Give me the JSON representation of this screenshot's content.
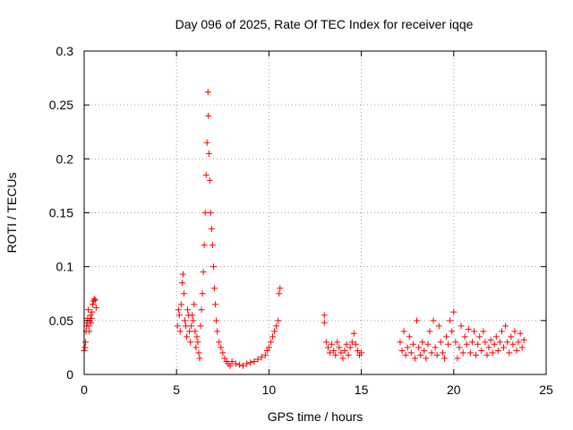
{
  "chart_data": {
    "type": "scatter",
    "title": "Day 096 of 2025, Rate Of TEC Index for receiver iqqe",
    "xlabel": "GPS time / hours",
    "ylabel": "ROTI / TECUs",
    "xlim": [
      0,
      25
    ],
    "ylim": [
      0,
      0.3
    ],
    "xticks": [
      0,
      5,
      10,
      15,
      20,
      25
    ],
    "yticks": [
      0,
      0.05,
      0.1,
      0.15,
      0.2,
      0.25,
      0.3
    ],
    "xtick_labels": [
      "0",
      "5",
      "10",
      "15",
      "20",
      "25"
    ],
    "ytick_labels": [
      "0",
      "0.05",
      "0.1",
      "0.15",
      "0.2",
      "0.25",
      "0.3"
    ],
    "grid": true,
    "marker": "+",
    "color": "#ff0000",
    "series": [
      {
        "points": [
          [
            0.0,
            0.022
          ],
          [
            0.05,
            0.025
          ],
          [
            0.08,
            0.03
          ],
          [
            0.1,
            0.04
          ],
          [
            0.13,
            0.045
          ],
          [
            0.16,
            0.048
          ],
          [
            0.19,
            0.052
          ],
          [
            0.22,
            0.06
          ],
          [
            0.25,
            0.045
          ],
          [
            0.28,
            0.04
          ],
          [
            0.31,
            0.05
          ],
          [
            0.34,
            0.055
          ],
          [
            0.37,
            0.048
          ],
          [
            0.4,
            0.052
          ],
          [
            0.43,
            0.058
          ],
          [
            0.46,
            0.065
          ],
          [
            0.5,
            0.068
          ],
          [
            0.55,
            0.07
          ],
          [
            0.6,
            0.069
          ],
          [
            0.65,
            0.062
          ],
          [
            5.05,
            0.045
          ],
          [
            5.1,
            0.06
          ],
          [
            5.15,
            0.055
          ],
          [
            5.2,
            0.04
          ],
          [
            5.25,
            0.065
          ],
          [
            5.3,
            0.085
          ],
          [
            5.35,
            0.093
          ],
          [
            5.4,
            0.075
          ],
          [
            5.45,
            0.05
          ],
          [
            5.5,
            0.045
          ],
          [
            5.55,
            0.035
          ],
          [
            5.6,
            0.06
          ],
          [
            5.65,
            0.055
          ],
          [
            5.7,
            0.04
          ],
          [
            5.75,
            0.03
          ],
          [
            5.8,
            0.045
          ],
          [
            5.85,
            0.055
          ],
          [
            5.9,
            0.05
          ],
          [
            5.95,
            0.065
          ],
          [
            6.0,
            0.04
          ],
          [
            6.05,
            0.025
          ],
          [
            6.1,
            0.035
          ],
          [
            6.15,
            0.03
          ],
          [
            6.2,
            0.02
          ],
          [
            6.25,
            0.015
          ],
          [
            6.3,
            0.045
          ],
          [
            6.35,
            0.06
          ],
          [
            6.4,
            0.075
          ],
          [
            6.45,
            0.095
          ],
          [
            6.5,
            0.12
          ],
          [
            6.55,
            0.15
          ],
          [
            6.6,
            0.185
          ],
          [
            6.65,
            0.215
          ],
          [
            6.7,
            0.262
          ],
          [
            6.72,
            0.24
          ],
          [
            6.75,
            0.205
          ],
          [
            6.8,
            0.18
          ],
          [
            6.85,
            0.15
          ],
          [
            6.9,
            0.135
          ],
          [
            6.95,
            0.12
          ],
          [
            7.0,
            0.1
          ],
          [
            7.05,
            0.08
          ],
          [
            7.1,
            0.065
          ],
          [
            7.15,
            0.05
          ],
          [
            7.2,
            0.04
          ],
          [
            7.3,
            0.03
          ],
          [
            7.4,
            0.025
          ],
          [
            7.5,
            0.02
          ],
          [
            7.6,
            0.015
          ],
          [
            7.7,
            0.012
          ],
          [
            7.8,
            0.01
          ],
          [
            7.9,
            0.008
          ],
          [
            8.0,
            0.012
          ],
          [
            8.2,
            0.01
          ],
          [
            8.4,
            0.009
          ],
          [
            8.6,
            0.008
          ],
          [
            8.8,
            0.01
          ],
          [
            9.0,
            0.011
          ],
          [
            9.2,
            0.012
          ],
          [
            9.4,
            0.014
          ],
          [
            9.6,
            0.016
          ],
          [
            9.8,
            0.018
          ],
          [
            9.9,
            0.022
          ],
          [
            10.0,
            0.025
          ],
          [
            10.1,
            0.03
          ],
          [
            10.2,
            0.035
          ],
          [
            10.3,
            0.04
          ],
          [
            10.4,
            0.045
          ],
          [
            10.5,
            0.05
          ],
          [
            10.55,
            0.075
          ],
          [
            10.6,
            0.08
          ],
          [
            13.0,
            0.055
          ],
          [
            13.0,
            0.048
          ],
          [
            13.1,
            0.03
          ],
          [
            13.2,
            0.025
          ],
          [
            13.3,
            0.02
          ],
          [
            13.4,
            0.028
          ],
          [
            13.5,
            0.022
          ],
          [
            13.6,
            0.018
          ],
          [
            13.7,
            0.03
          ],
          [
            13.8,
            0.025
          ],
          [
            13.9,
            0.02
          ],
          [
            14.0,
            0.015
          ],
          [
            14.1,
            0.022
          ],
          [
            14.2,
            0.028
          ],
          [
            14.3,
            0.018
          ],
          [
            14.4,
            0.025
          ],
          [
            14.5,
            0.03
          ],
          [
            14.6,
            0.038
          ],
          [
            14.7,
            0.028
          ],
          [
            14.8,
            0.022
          ],
          [
            14.9,
            0.018
          ],
          [
            15.0,
            0.02
          ],
          [
            17.1,
            0.03
          ],
          [
            17.2,
            0.022
          ],
          [
            17.3,
            0.04
          ],
          [
            17.4,
            0.018
          ],
          [
            17.5,
            0.025
          ],
          [
            17.6,
            0.035
          ],
          [
            17.7,
            0.02
          ],
          [
            17.8,
            0.028
          ],
          [
            17.9,
            0.015
          ],
          [
            18.0,
            0.05
          ],
          [
            18.1,
            0.025
          ],
          [
            18.2,
            0.018
          ],
          [
            18.3,
            0.03
          ],
          [
            18.4,
            0.022
          ],
          [
            18.5,
            0.015
          ],
          [
            18.6,
            0.028
          ],
          [
            18.7,
            0.04
          ],
          [
            18.8,
            0.02
          ],
          [
            18.9,
            0.05
          ],
          [
            19.0,
            0.025
          ],
          [
            19.1,
            0.018
          ],
          [
            19.2,
            0.045
          ],
          [
            19.3,
            0.03
          ],
          [
            19.4,
            0.02
          ],
          [
            19.5,
            0.015
          ],
          [
            19.6,
            0.035
          ],
          [
            19.7,
            0.028
          ],
          [
            19.8,
            0.05
          ],
          [
            19.9,
            0.04
          ],
          [
            20.0,
            0.058
          ],
          [
            20.1,
            0.03
          ],
          [
            20.2,
            0.015
          ],
          [
            20.3,
            0.025
          ],
          [
            20.4,
            0.045
          ],
          [
            20.5,
            0.02
          ],
          [
            20.6,
            0.035
          ],
          [
            20.7,
            0.028
          ],
          [
            20.8,
            0.042
          ],
          [
            20.9,
            0.02
          ],
          [
            21.0,
            0.03
          ],
          [
            21.1,
            0.04
          ],
          [
            21.2,
            0.018
          ],
          [
            21.3,
            0.028
          ],
          [
            21.4,
            0.035
          ],
          [
            21.5,
            0.022
          ],
          [
            21.6,
            0.04
          ],
          [
            21.7,
            0.03
          ],
          [
            21.8,
            0.018
          ],
          [
            21.9,
            0.025
          ],
          [
            22.0,
            0.032
          ],
          [
            22.1,
            0.02
          ],
          [
            22.2,
            0.028
          ],
          [
            22.3,
            0.035
          ],
          [
            22.4,
            0.022
          ],
          [
            22.5,
            0.03
          ],
          [
            22.6,
            0.04
          ],
          [
            22.7,
            0.025
          ],
          [
            22.8,
            0.045
          ],
          [
            22.9,
            0.03
          ],
          [
            23.0,
            0.02
          ],
          [
            23.1,
            0.035
          ],
          [
            23.2,
            0.028
          ],
          [
            23.3,
            0.04
          ],
          [
            23.4,
            0.022
          ],
          [
            23.5,
            0.03
          ],
          [
            23.6,
            0.038
          ],
          [
            23.7,
            0.025
          ],
          [
            23.8,
            0.032
          ]
        ]
      }
    ]
  }
}
